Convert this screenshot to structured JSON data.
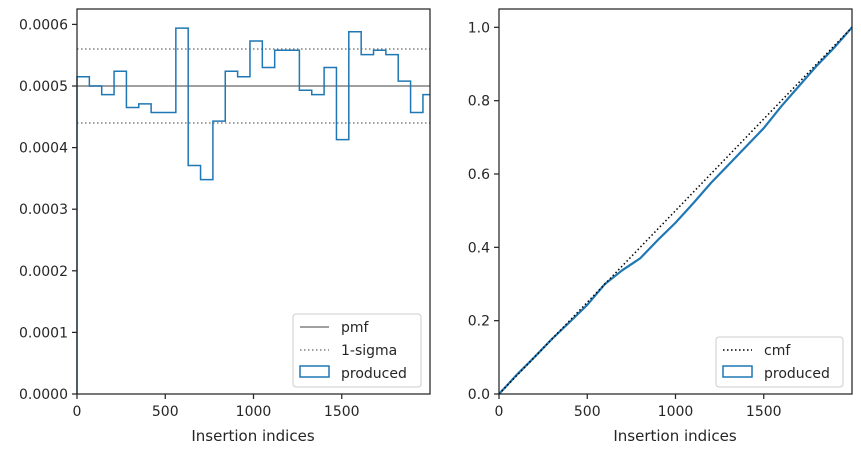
{
  "chart_data": [
    {
      "type": "step-histogram",
      "xlabel": "Insertion indices",
      "ylabel": "",
      "xlim": [
        0,
        2000
      ],
      "ylim": [
        0,
        0.000625
      ],
      "xticks": [
        0,
        500,
        1000,
        1500
      ],
      "xtick_labels": [
        "0",
        "500",
        "1000",
        "1500"
      ],
      "yticks": [
        0,
        0.0001,
        0.0002,
        0.0003,
        0.0004,
        0.0005,
        0.0006
      ],
      "ytick_labels": [
        "0.0000",
        "0.0001",
        "0.0002",
        "0.0003",
        "0.0004",
        "0.0005",
        "0.0006"
      ],
      "bin_edges": [
        0,
        70,
        140,
        210,
        280,
        350,
        420,
        490,
        560,
        630,
        700,
        770,
        840,
        910,
        980,
        1050,
        1120,
        1190,
        1260,
        1330,
        1400,
        1470,
        1540,
        1610,
        1680,
        1750,
        1820,
        1890,
        1960,
        2000
      ],
      "series": [
        {
          "name": "produced",
          "color": "#1f77b4",
          "values": [
            0.000515,
            0.0005,
            0.000486,
            0.000524,
            0.000465,
            0.000471,
            0.000457,
            0.000457,
            0.000594,
            0.000371,
            0.000348,
            0.000443,
            0.000524,
            0.000515,
            0.000573,
            0.00053,
            0.000558,
            0.000558,
            0.000493,
            0.000486,
            0.00053,
            0.000413,
            0.000588,
            0.000551,
            0.000558,
            0.000551,
            0.000508,
            0.000457,
            0.000486
          ]
        }
      ],
      "reference_lines": [
        {
          "name": "pmf",
          "y": 0.0005,
          "style": "solid",
          "color": "#808080"
        },
        {
          "name": "1-sigma",
          "y": 0.00056,
          "style": "dotted",
          "color": "#808080"
        },
        {
          "name": "",
          "y": 0.00044,
          "style": "dotted",
          "color": "#808080"
        }
      ],
      "legend": {
        "position": "lower-right",
        "entries": [
          "pmf",
          "1-sigma",
          "produced"
        ]
      }
    },
    {
      "type": "line",
      "xlabel": "Insertion indices",
      "ylabel": "",
      "xlim": [
        0,
        2000
      ],
      "ylim": [
        0,
        1.05
      ],
      "xticks": [
        0,
        500,
        1000,
        1500
      ],
      "xtick_labels": [
        "0",
        "500",
        "1000",
        "1500"
      ],
      "yticks": [
        0,
        0.2,
        0.4,
        0.6,
        0.8,
        1.0
      ],
      "ytick_labels": [
        "0.0",
        "0.2",
        "0.4",
        "0.6",
        "0.8",
        "1.0"
      ],
      "series": [
        {
          "name": "cmf",
          "style": "dotted",
          "color": "#000000",
          "x": [
            0,
            2000
          ],
          "y": [
            0,
            1.0
          ]
        },
        {
          "name": "produced",
          "style": "solid",
          "color": "#1f77b4",
          "x": [
            0,
            100,
            200,
            300,
            400,
            500,
            600,
            700,
            800,
            900,
            1000,
            1100,
            1200,
            1300,
            1400,
            1500,
            1600,
            1700,
            1800,
            1900,
            2000
          ],
          "y": [
            0,
            0.052,
            0.1,
            0.15,
            0.196,
            0.243,
            0.3,
            0.338,
            0.37,
            0.42,
            0.467,
            0.52,
            0.575,
            0.625,
            0.675,
            0.725,
            0.785,
            0.84,
            0.895,
            0.945,
            1.0
          ]
        }
      ],
      "legend": {
        "position": "lower-right",
        "entries": [
          "cmf",
          "produced"
        ]
      }
    }
  ]
}
